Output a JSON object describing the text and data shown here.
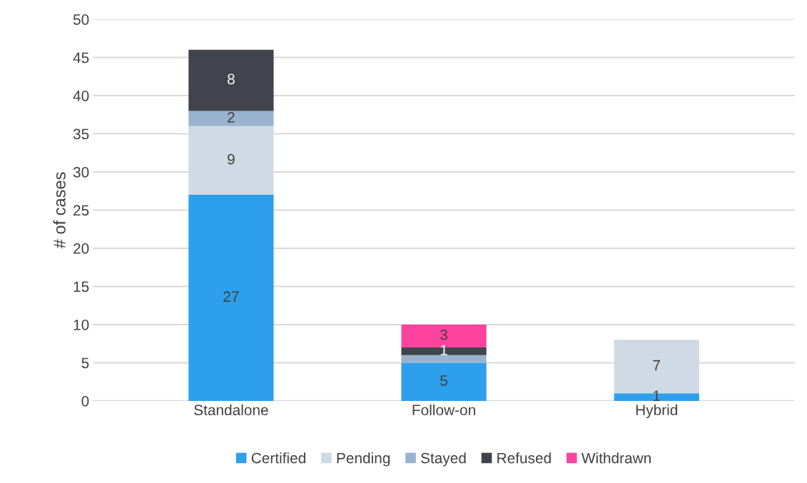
{
  "chart_data": {
    "type": "bar",
    "stacked": true,
    "ylabel": "# of cases",
    "categories": [
      "Standalone",
      "Follow-on",
      "Hybrid"
    ],
    "series": [
      {
        "name": "Certified",
        "color": "#2e9fec",
        "values": [
          27,
          5,
          1
        ],
        "value_labels": [
          "27",
          "5",
          "1"
        ]
      },
      {
        "name": "Pending",
        "color": "#d0dae4",
        "values": [
          9,
          0,
          7
        ],
        "value_labels": [
          "9",
          null,
          "7"
        ]
      },
      {
        "name": "Stayed",
        "color": "#98b3d0",
        "values": [
          2,
          1,
          0
        ],
        "value_labels": [
          "2",
          null,
          null
        ]
      },
      {
        "name": "Refused",
        "color": "#41444c",
        "values": [
          8,
          1,
          0
        ],
        "value_labels": [
          "8",
          "1",
          null
        ]
      },
      {
        "name": "Withdrawn",
        "color": "#ff44a0",
        "values": [
          0,
          3,
          0
        ],
        "value_labels": [
          null,
          "3",
          null
        ]
      }
    ],
    "ylim": [
      0,
      50
    ],
    "yticks": [
      0,
      5,
      10,
      15,
      20,
      25,
      30,
      35,
      40,
      45,
      50
    ],
    "grid": "y",
    "legend": "bottom"
  }
}
